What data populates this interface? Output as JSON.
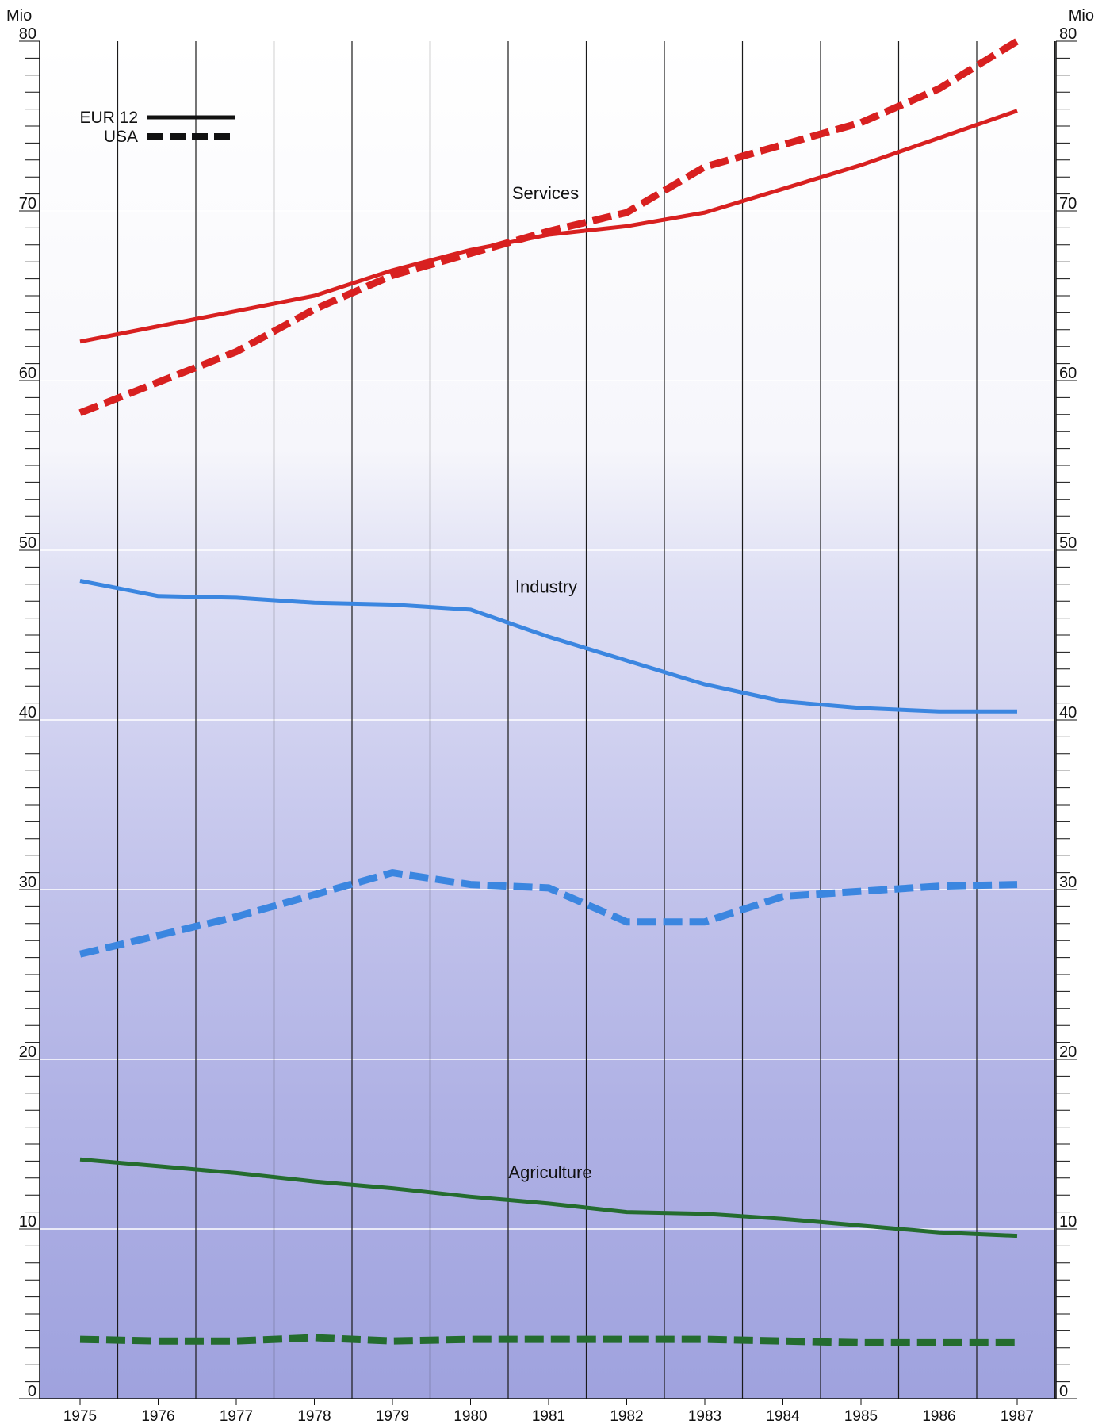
{
  "chart_data": {
    "type": "line",
    "x": [
      1975,
      1976,
      1977,
      1978,
      1979,
      1980,
      1981,
      1982,
      1983,
      1984,
      1985,
      1986,
      1987
    ],
    "y_unit": "Mio",
    "ylim": [
      0,
      80
    ],
    "yticks": [
      0,
      10,
      20,
      30,
      40,
      50,
      60,
      70,
      80
    ],
    "grid": true,
    "legend_position": "top-left",
    "legend": [
      {
        "label": "EUR 12",
        "style": "solid"
      },
      {
        "label": "USA",
        "style": "dashed"
      }
    ],
    "annotations": [
      "Services",
      "Industry",
      "Agriculture"
    ],
    "series": [
      {
        "group": "Services",
        "region": "EUR 12",
        "style": "solid",
        "color": "#d82020",
        "values": [
          62.3,
          63.2,
          64.1,
          65.0,
          66.5,
          67.7,
          68.6,
          69.1,
          69.9,
          71.3,
          72.7,
          74.3,
          75.9
        ]
      },
      {
        "group": "Services",
        "region": "USA",
        "style": "dashed",
        "color": "#d82020",
        "values": [
          58.1,
          59.9,
          61.7,
          64.2,
          66.2,
          67.5,
          68.8,
          69.9,
          72.6,
          73.9,
          75.2,
          77.2,
          80.0
        ]
      },
      {
        "group": "Industry",
        "region": "EUR 12",
        "style": "solid",
        "color": "#3b86e0",
        "values": [
          48.2,
          47.3,
          47.2,
          46.9,
          46.8,
          46.5,
          44.9,
          43.5,
          42.1,
          41.1,
          40.7,
          40.5,
          40.5
        ]
      },
      {
        "group": "Industry",
        "region": "USA",
        "style": "dashed",
        "color": "#3b86e0",
        "values": [
          26.2,
          27.3,
          28.4,
          29.7,
          31.0,
          30.3,
          30.1,
          28.1,
          28.1,
          29.6,
          29.9,
          30.2,
          30.3
        ]
      },
      {
        "group": "Agriculture",
        "region": "EUR 12",
        "style": "solid",
        "color": "#246c2e",
        "values": [
          14.1,
          13.7,
          13.3,
          12.8,
          12.4,
          11.9,
          11.5,
          11.0,
          10.9,
          10.6,
          10.2,
          9.8,
          9.6
        ]
      },
      {
        "group": "Agriculture",
        "region": "USA",
        "style": "dashed",
        "color": "#246c2e",
        "values": [
          3.5,
          3.4,
          3.4,
          3.6,
          3.4,
          3.5,
          3.5,
          3.5,
          3.5,
          3.4,
          3.3,
          3.3,
          3.3
        ]
      }
    ]
  }
}
